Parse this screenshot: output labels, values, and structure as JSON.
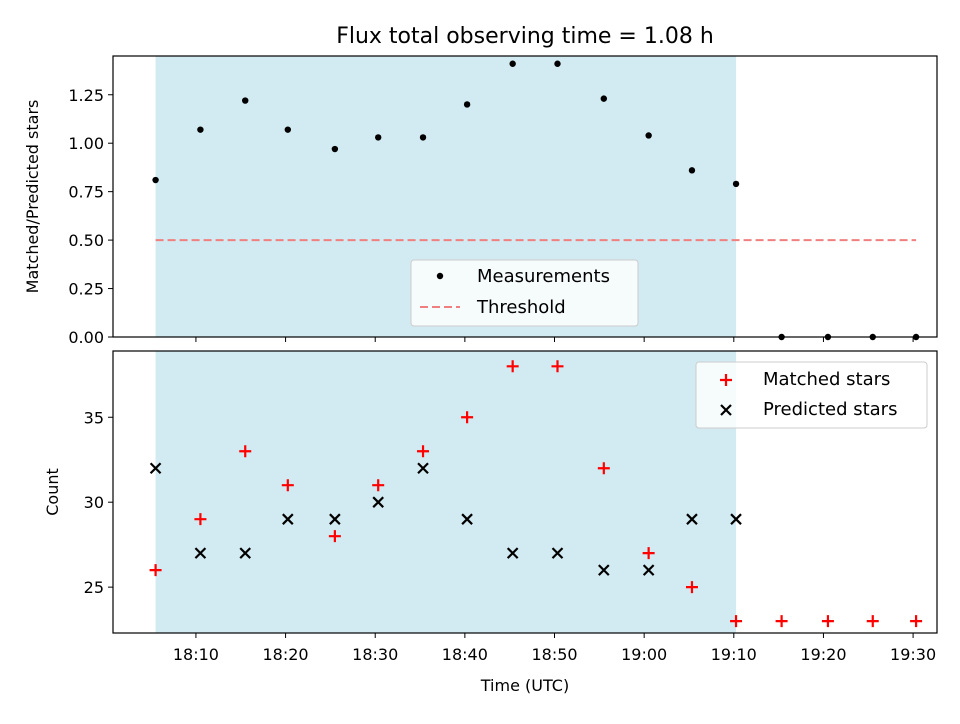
{
  "title": "Flux total observing time = 1.08 h",
  "colors": {
    "observing_span": "#add8e6",
    "measurements": "#000000",
    "threshold": "#f08080",
    "matched": "#ff0000",
    "predicted": "#000000"
  },
  "chart_data": [
    {
      "type": "scatter",
      "name": "ratio-panel",
      "ylabel": "Matched/Predicted stars",
      "xlabel": "",
      "ylim": [
        0,
        1.45
      ],
      "yticks": [
        0,
        0.25,
        0.5,
        0.75,
        1.0,
        1.25
      ],
      "ytick_labels": [
        "0.00",
        "0.25",
        "0.50",
        "0.75",
        "1.00",
        "1.25"
      ],
      "xlim": [
        "18:00:45",
        "19:32:40"
      ],
      "shaded_span": [
        "18:05:30",
        "19:10:15"
      ],
      "legend_position": "lower center",
      "series": [
        {
          "name": "Measurements",
          "x": [
            "18:05:30",
            "18:10:30",
            "18:15:30",
            "18:20:15",
            "18:25:30",
            "18:30:20",
            "18:35:20",
            "18:40:15",
            "18:45:20",
            "18:50:20",
            "18:55:30",
            "19:00:30",
            "19:05:20",
            "19:10:15",
            "19:15:20",
            "19:20:30",
            "19:25:30",
            "19:30:20"
          ],
          "values": [
            0.81,
            1.07,
            1.22,
            1.07,
            0.97,
            1.03,
            1.03,
            1.2,
            1.41,
            1.41,
            1.23,
            1.04,
            0.86,
            0.79,
            0,
            0,
            0,
            0
          ]
        },
        {
          "name": "Threshold",
          "x": [
            "18:05:30",
            "19:30:20"
          ],
          "values": [
            0.5,
            0.5
          ]
        }
      ]
    },
    {
      "type": "scatter",
      "name": "count-panel",
      "ylabel": "Count",
      "xlabel": "Time (UTC)",
      "ylim": [
        22.3,
        38.9
      ],
      "yticks": [
        25,
        30,
        35
      ],
      "ytick_labels": [
        "25",
        "30",
        "35"
      ],
      "xlim": [
        "18:00:45",
        "19:32:40"
      ],
      "xticks": [
        "18:10",
        "18:20",
        "18:30",
        "18:40",
        "18:50",
        "19:00",
        "19:10",
        "19:20",
        "19:30"
      ],
      "xtick_labels": [
        "18:10",
        "18:20",
        "18:30",
        "18:40",
        "18:50",
        "19:00",
        "19:10",
        "19:20",
        "19:30"
      ],
      "shaded_span": [
        "18:05:30",
        "19:10:15"
      ],
      "legend_position": "upper right",
      "series": [
        {
          "name": "Matched stars",
          "marker": "plus",
          "x": [
            "18:05:30",
            "18:10:30",
            "18:15:30",
            "18:20:15",
            "18:25:30",
            "18:30:20",
            "18:35:20",
            "18:40:15",
            "18:45:20",
            "18:50:20",
            "18:55:30",
            "19:00:30",
            "19:05:20",
            "19:10:15",
            "19:15:20",
            "19:20:30",
            "19:25:30",
            "19:30:20"
          ],
          "values": [
            26,
            29,
            33,
            31,
            28,
            31,
            33,
            35,
            38,
            38,
            32,
            27,
            25,
            23,
            23,
            23,
            23,
            23
          ]
        },
        {
          "name": "Predicted stars",
          "marker": "x",
          "x": [
            "18:05:30",
            "18:10:30",
            "18:15:30",
            "18:20:15",
            "18:25:30",
            "18:30:20",
            "18:35:20",
            "18:40:15",
            "18:45:20",
            "18:50:20",
            "18:55:30",
            "19:00:30",
            "19:05:20",
            "19:10:15"
          ],
          "values": [
            32,
            27,
            27,
            29,
            29,
            30,
            32,
            29,
            27,
            27,
            26,
            26,
            29,
            29
          ]
        }
      ]
    }
  ]
}
